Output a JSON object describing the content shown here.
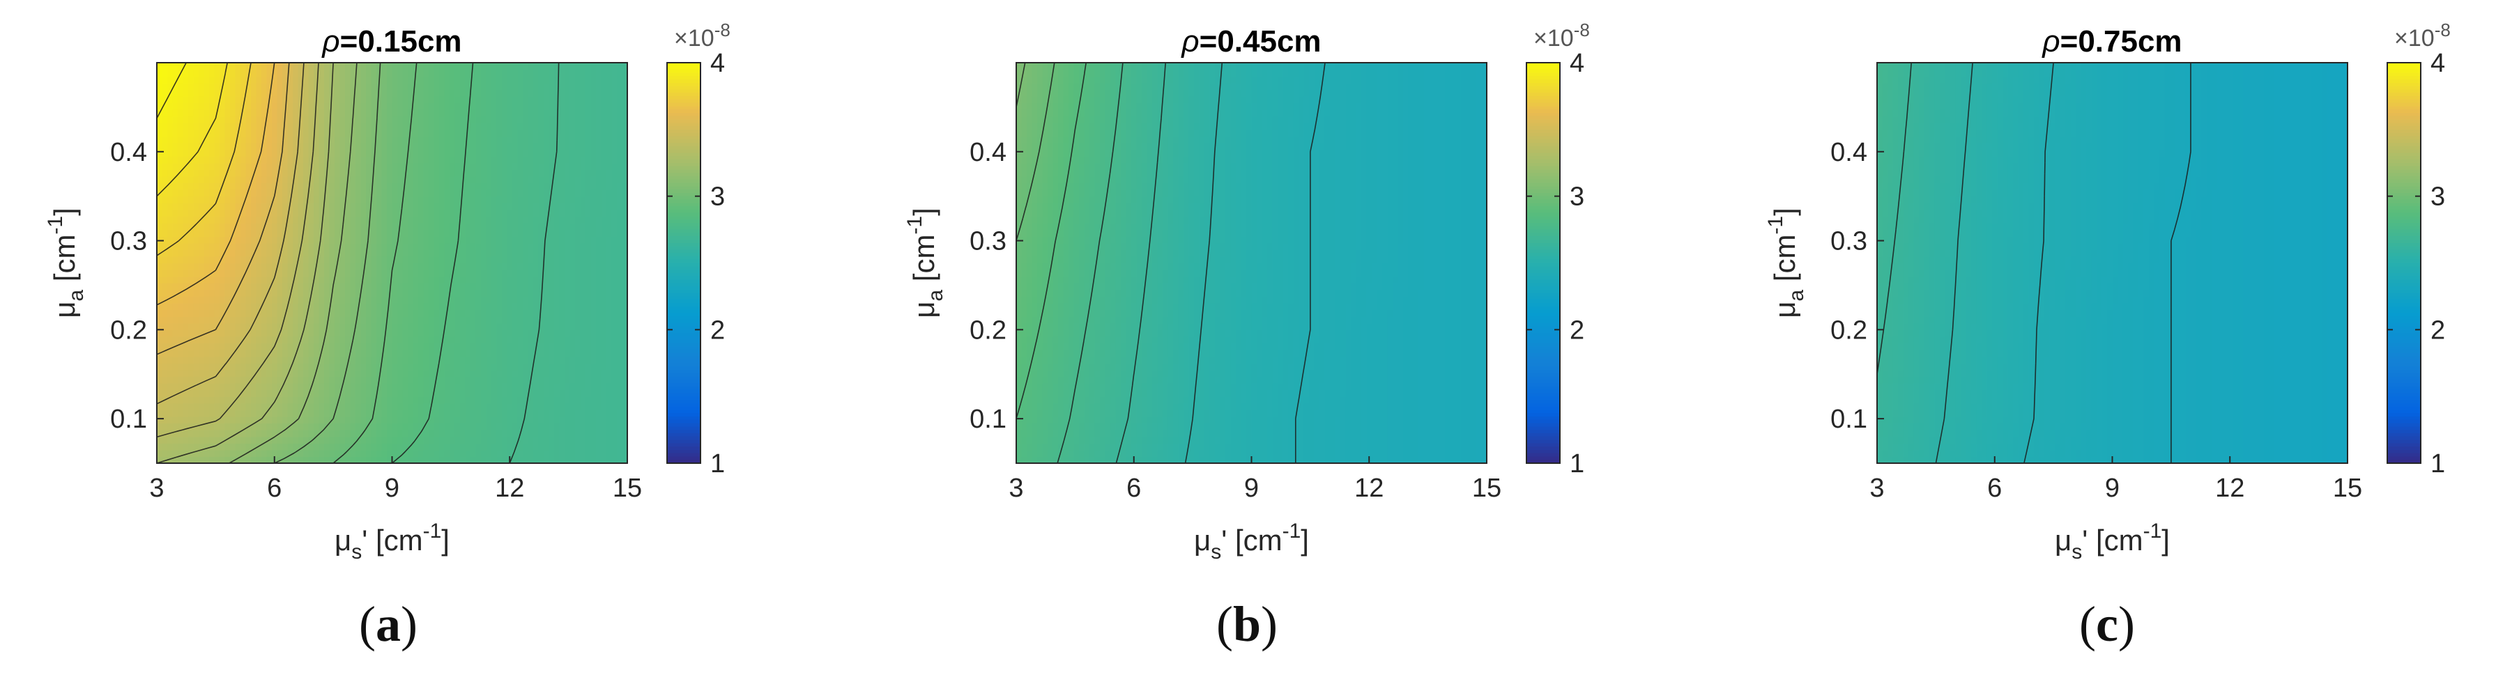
{
  "chart_data": [
    {
      "type": "heatmap",
      "title": "ρ=0.15cm",
      "title_symbol": "ρ",
      "title_value": "=0.15cm",
      "xlabel": "μs' [cm-1]",
      "ylabel": "μa [cm-1]",
      "x_ticks": [
        "3",
        "6",
        "9",
        "12",
        "15"
      ],
      "y_ticks": [
        "0.1",
        "0.2",
        "0.3",
        "0.4"
      ],
      "xlim": [
        3,
        15
      ],
      "ylim": [
        0.05,
        0.5
      ],
      "colorbar": {
        "ticks": [
          "1",
          "2",
          "3",
          "4"
        ],
        "exponent_label": "×10-8",
        "range": [
          1,
          4
        ],
        "colormap": "parula"
      },
      "x": [
        3,
        4.5,
        6,
        7.5,
        9,
        10.5,
        12,
        13.5,
        15
      ],
      "y": [
        0.05,
        0.1,
        0.2,
        0.3,
        0.4,
        0.5
      ],
      "z_scaled_1e-8": [
        [
          3.25,
          3.18,
          3.05,
          2.95,
          2.85,
          2.8,
          2.75,
          2.72,
          2.7
        ],
        [
          3.42,
          3.36,
          3.22,
          3.05,
          2.9,
          2.82,
          2.76,
          2.72,
          2.7
        ],
        [
          3.6,
          3.55,
          3.38,
          3.12,
          2.93,
          2.84,
          2.77,
          2.73,
          2.7
        ],
        [
          3.78,
          3.7,
          3.5,
          3.18,
          2.96,
          2.86,
          2.78,
          2.73,
          2.7
        ],
        [
          3.92,
          3.82,
          3.6,
          3.22,
          2.98,
          2.87,
          2.79,
          2.74,
          2.71
        ],
        [
          4.0,
          3.9,
          3.65,
          3.25,
          3.0,
          2.88,
          2.8,
          2.74,
          2.71
        ]
      ],
      "caption": "(a)",
      "caption_letter": "a"
    },
    {
      "type": "heatmap",
      "title": "ρ=0.45cm",
      "title_symbol": "ρ",
      "title_value": "=0.45cm",
      "xlabel": "μs' [cm-1]",
      "ylabel": "μa [cm-1]",
      "x_ticks": [
        "3",
        "6",
        "9",
        "12",
        "15"
      ],
      "y_ticks": [
        "0.1",
        "0.2",
        "0.3",
        "0.4"
      ],
      "xlim": [
        3,
        15
      ],
      "ylim": [
        0.05,
        0.5
      ],
      "colorbar": {
        "ticks": [
          "1",
          "2",
          "3",
          "4"
        ],
        "exponent_label": "×10-8",
        "range": [
          1,
          4
        ],
        "colormap": "parula"
      },
      "x": [
        3,
        4.5,
        6,
        7.5,
        9,
        10.5,
        12,
        13.5,
        15
      ],
      "y": [
        0.05,
        0.1,
        0.2,
        0.3,
        0.4,
        0.5
      ],
      "z_scaled_1e-8": [
        [
          2.82,
          2.72,
          2.62,
          2.54,
          2.48,
          2.44,
          2.41,
          2.39,
          2.38
        ],
        [
          2.85,
          2.74,
          2.64,
          2.55,
          2.48,
          2.44,
          2.41,
          2.39,
          2.38
        ],
        [
          2.9,
          2.77,
          2.66,
          2.56,
          2.49,
          2.45,
          2.41,
          2.39,
          2.38
        ],
        [
          2.95,
          2.8,
          2.68,
          2.57,
          2.5,
          2.45,
          2.42,
          2.39,
          2.38
        ],
        [
          3.02,
          2.84,
          2.7,
          2.58,
          2.5,
          2.45,
          2.42,
          2.39,
          2.38
        ],
        [
          3.08,
          2.88,
          2.72,
          2.59,
          2.51,
          2.46,
          2.42,
          2.39,
          2.38
        ]
      ],
      "caption": "(b)",
      "caption_letter": "b"
    },
    {
      "type": "heatmap",
      "title": "ρ=0.75cm",
      "title_symbol": "ρ",
      "title_value": "=0.75cm",
      "xlabel": "μs' [cm-1]",
      "ylabel": "μa [cm-1]",
      "x_ticks": [
        "3",
        "6",
        "9",
        "12",
        "15"
      ],
      "y_ticks": [
        "0.1",
        "0.2",
        "0.3",
        "0.4"
      ],
      "xlim": [
        3,
        15
      ],
      "ylim": [
        0.05,
        0.5
      ],
      "colorbar": {
        "ticks": [
          "1",
          "2",
          "3",
          "4"
        ],
        "exponent_label": "×10-8",
        "range": [
          1,
          4
        ],
        "colormap": "parula"
      },
      "x": [
        3,
        4.5,
        6,
        7.5,
        9,
        10.5,
        12,
        13.5,
        15
      ],
      "y": [
        0.05,
        0.1,
        0.2,
        0.3,
        0.4,
        0.5
      ],
      "z_scaled_1e-8": [
        [
          2.62,
          2.55,
          2.48,
          2.42,
          2.38,
          2.35,
          2.33,
          2.31,
          2.3
        ],
        [
          2.64,
          2.56,
          2.49,
          2.43,
          2.38,
          2.35,
          2.33,
          2.31,
          2.3
        ],
        [
          2.66,
          2.57,
          2.5,
          2.43,
          2.38,
          2.35,
          2.33,
          2.31,
          2.3
        ],
        [
          2.68,
          2.58,
          2.5,
          2.44,
          2.39,
          2.35,
          2.33,
          2.31,
          2.3
        ],
        [
          2.7,
          2.59,
          2.51,
          2.44,
          2.39,
          2.36,
          2.33,
          2.31,
          2.3
        ],
        [
          2.72,
          2.6,
          2.52,
          2.45,
          2.39,
          2.36,
          2.33,
          2.31,
          2.3
        ]
      ],
      "caption": "(c)",
      "caption_letter": "c"
    }
  ]
}
